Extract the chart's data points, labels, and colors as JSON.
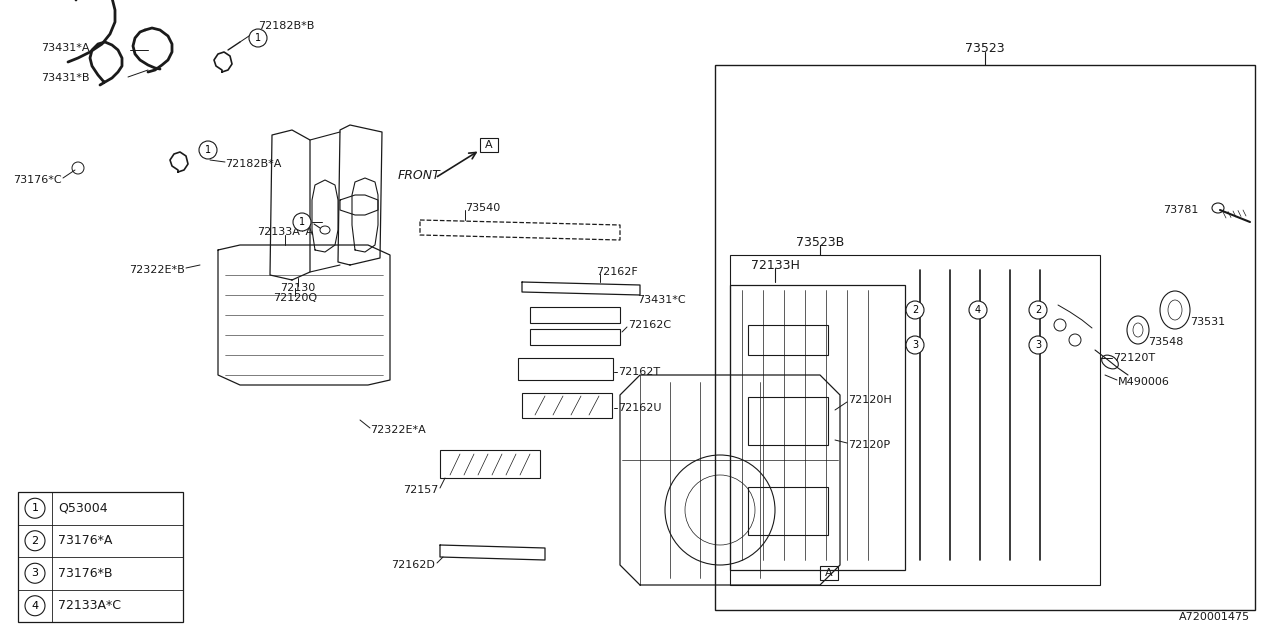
{
  "bg_color": "#ffffff",
  "line_color": "#1a1a1a",
  "font_family": "DejaVu Sans",
  "fig_width": 12.8,
  "fig_height": 6.4,
  "legend_items": [
    {
      "num": "1",
      "code": "Q53004"
    },
    {
      "num": "2",
      "code": "73176*A"
    },
    {
      "num": "3",
      "code": "73176*B"
    },
    {
      "num": "4",
      "code": "72133A*C"
    }
  ]
}
